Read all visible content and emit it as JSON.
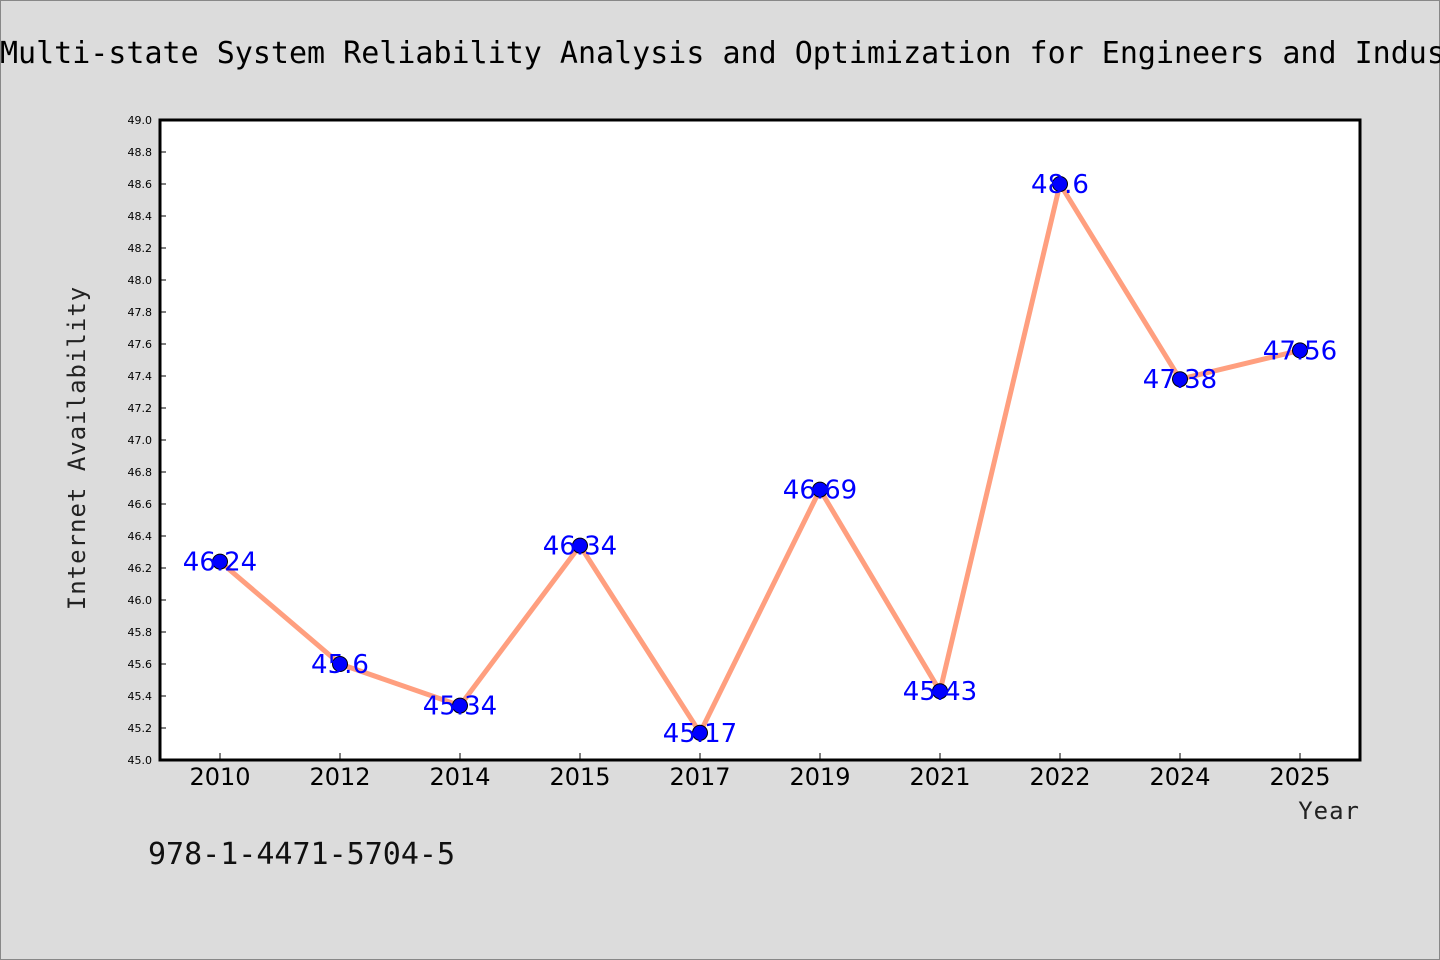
{
  "chart_data": {
    "type": "line",
    "title": "Multi-state System Reliability Analysis and Optimization for Engineers and Indus",
    "xlabel": "Year",
    "ylabel": "Internet Availability",
    "categories": [
      "2010",
      "2012",
      "2014",
      "2015",
      "2017",
      "2019",
      "2021",
      "2022",
      "2024",
      "2025"
    ],
    "series": [
      {
        "values": [
          46.24,
          45.6,
          45.34,
          46.34,
          45.17,
          46.69,
          45.43,
          48.6,
          47.38,
          47.56
        ],
        "data_labels": [
          "46.24",
          "45.6",
          "45.34",
          "46.34",
          "45.17",
          "46.69",
          "45.43",
          "48.6",
          "47.38",
          "47.56"
        ],
        "line_color": "#ff9f7f",
        "marker_color": "#0000ff"
      }
    ],
    "ylim": [
      45.0,
      49.0
    ],
    "yticks": [
      "45.0",
      "45.2",
      "45.4",
      "45.6",
      "45.8",
      "46.0",
      "46.2",
      "46.4",
      "46.6",
      "46.8",
      "47.0",
      "47.2",
      "47.4",
      "47.6",
      "47.8",
      "48.0",
      "48.2",
      "48.4",
      "48.6",
      "48.8",
      "49.0"
    ],
    "grid": false,
    "legend": "none"
  },
  "annotation": {
    "isbn": "978-1-4471-5704-5"
  },
  "colors": {
    "background": "#dcdcdc",
    "plot_background": "#ffffff",
    "line": "#ff9f7f",
    "marker": "#0000ff",
    "data_label": "#0000ff"
  }
}
